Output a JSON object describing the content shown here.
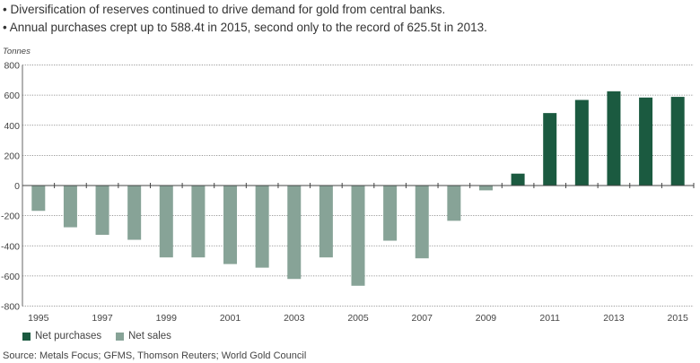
{
  "bullets": [
    "• Diversification of reserves continued to drive demand for gold from central banks.",
    "• Annual purchases crept up to 588.4t in 2015, second only to the record of 625.5t in 2013."
  ],
  "source": "Source: Metals Focus; GFMS, Thomson Reuters; World Gold Council",
  "chart_data": {
    "type": "bar",
    "title": "",
    "ylabel": "Tonnes",
    "xlabel": "",
    "ylim": [
      -800,
      800
    ],
    "yticks": [
      800,
      600,
      400,
      200,
      0,
      -200,
      -400,
      -600,
      -800
    ],
    "grid": true,
    "legend_position": "bottom-left",
    "categories": [
      "1995",
      "1996",
      "1997",
      "1998",
      "1999",
      "2000",
      "2001",
      "2002",
      "2003",
      "2004",
      "2005",
      "2006",
      "2007",
      "2008",
      "2009",
      "2010",
      "2011",
      "2012",
      "2013",
      "2014",
      "2015"
    ],
    "xtick_labels": [
      "1995",
      "1997",
      "1999",
      "2001",
      "2003",
      "2005",
      "2007",
      "2009",
      "2011",
      "2013",
      "2015"
    ],
    "values": [
      -168,
      -277,
      -327,
      -360,
      -477,
      -477,
      -521,
      -545,
      -620,
      -477,
      -665,
      -366,
      -483,
      -234,
      -32,
      79,
      481,
      568,
      625.5,
      584,
      588.4
    ],
    "series": [
      {
        "name": "Net purchases",
        "color": "#1b5a40"
      },
      {
        "name": "Net sales",
        "color": "#87a397"
      }
    ]
  }
}
